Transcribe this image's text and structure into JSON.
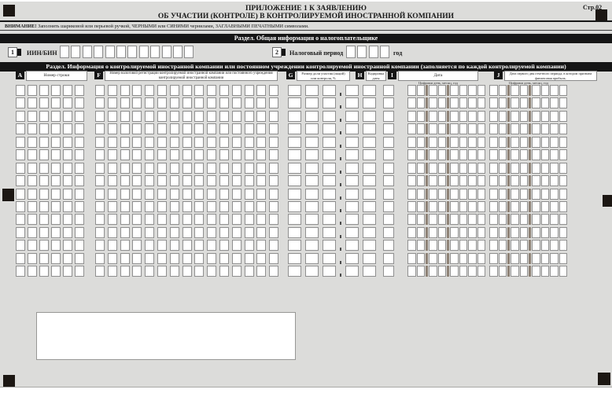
{
  "page": {
    "label": "Стр.02"
  },
  "header": {
    "title_line1": "ПРИЛОЖЕНИЕ 1 К ЗАЯВЛЕНИЮ",
    "title_line2": "ОБ УЧАСТИИ (КОНТРОЛЕ) В КОНТРОЛИРУЕМОЙ ИНОСТРАННОЙ КОМПАНИИ"
  },
  "warning": {
    "prefix": "ВНИМАНИЕ!",
    "text": " Заполнять шариковой или перьевой ручкой, ЧЕРНЫМИ или СИНИМИ чернилами, ЗАГЛАВНЫМИ ПЕЧАТНЫМИ символами."
  },
  "section1": {
    "title": "Раздел. Общая информация о налогоплательщике",
    "fields": [
      {
        "num": "1",
        "label": "ИИН/БИН",
        "cells": 12,
        "value": ""
      },
      {
        "num": "2",
        "label": "Налоговый период",
        "cells": 4,
        "suffix": "год",
        "value": ""
      }
    ]
  },
  "section2": {
    "title": "Раздел. Информация о контролируемой иностранной компании или постоянном учреждении контролируемой иностранной компании (заполняется по каждой контролируемой компании)",
    "columns": [
      {
        "letter": "A",
        "label": "Номер строки"
      },
      {
        "letter": "F",
        "label": "Номер налоговой регистрации контролируемой иностранной компании или постоянного учреждения контролируемой иностранной компании"
      },
      {
        "letter": "G",
        "label": "Размер доли участия (акций) или контроля, %"
      },
      {
        "letter": "H",
        "label": "Кодировка даты"
      },
      {
        "letter": "I",
        "label": "Дата",
        "sublabel": "Цифрами день, месяц, год"
      },
      {
        "letter": "J",
        "label": "Дата первого дня отчетного периода, в котором признана финансовая прибыль.",
        "sublabel": "Цифрами день, месяц, год"
      }
    ],
    "grid": {
      "rows": 15,
      "groups": [
        {
          "id": "A",
          "cells": 6
        },
        {
          "id": "F",
          "cells": 15
        },
        {
          "id": "G",
          "cells": 5,
          "decimal_after": 3
        },
        {
          "id": "H",
          "cells": 1
        },
        {
          "id": "I",
          "cells": 8,
          "date_separators_after": [
            2,
            4
          ]
        },
        {
          "id": "J",
          "cells": 8,
          "date_separators_after": [
            2,
            4
          ]
        }
      ],
      "values": []
    }
  },
  "colors": {
    "page_bg": "#dcdcda",
    "bar_bg": "#151515",
    "cell_border": "#8f8f8f",
    "date_separator": "#8e8276"
  }
}
